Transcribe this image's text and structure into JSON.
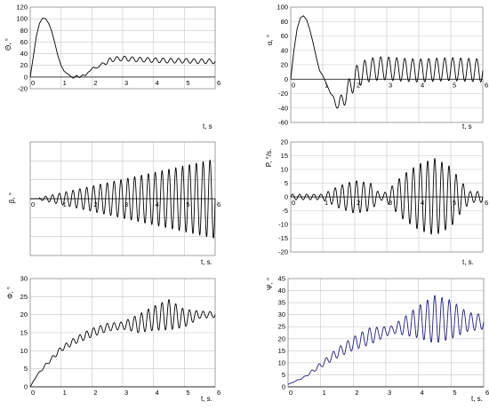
{
  "chart_data": [
    {
      "type": "line",
      "ylabel": "Θ, °",
      "xlabel": "t, s",
      "xlim": [
        0,
        6
      ],
      "ylim": [
        -20,
        120
      ],
      "xticks": [
        "0",
        "1",
        "2",
        "3",
        "4",
        "5",
        "6"
      ],
      "yticks": [
        "-20",
        "0",
        "20",
        "40",
        "60",
        "80",
        "100",
        "120"
      ],
      "grid": true,
      "color": "#000000",
      "series": [
        {
          "x": [
            0,
            0.1,
            0.2,
            0.3,
            0.4,
            0.5,
            0.6,
            0.7,
            0.8,
            0.9,
            1.0,
            1.1,
            1.2,
            1.3,
            1.4,
            1.5,
            1.6,
            1.7,
            1.8,
            1.9,
            2.0,
            2.1,
            2.2,
            2.3,
            2.4,
            2.5,
            2.6,
            2.8,
            3.0,
            3.5,
            4.0,
            4.5,
            5.0,
            5.5,
            6.0
          ],
          "y": [
            0,
            35,
            70,
            92,
            101,
            100,
            92,
            78,
            58,
            36,
            20,
            10,
            6,
            2,
            -2,
            3,
            -1,
            4,
            2,
            10,
            15,
            14,
            20,
            18,
            26,
            24,
            30,
            31,
            32,
            30,
            29,
            28,
            28,
            27,
            27
          ],
          "oscillation": {
            "from": 1.7,
            "to": 6,
            "amplitude": 4,
            "frequency": 4
          }
        }
      ]
    },
    {
      "type": "line",
      "ylabel": "α, °",
      "xlabel": "t, s",
      "xlim": [
        0,
        6
      ],
      "ylim": [
        -60,
        100
      ],
      "xticks": [
        "0",
        "1",
        "2",
        "3",
        "4",
        "5",
        "6"
      ],
      "yticks": [
        "-60",
        "-40",
        "-20",
        "0",
        "20",
        "40",
        "60",
        "80",
        "100"
      ],
      "grid": true,
      "color": "#000000",
      "series": [
        {
          "x": [
            0,
            0.1,
            0.2,
            0.3,
            0.4,
            0.5,
            0.6,
            0.7,
            0.8,
            0.9,
            1.0,
            1.1,
            1.2,
            1.3,
            1.4,
            1.5,
            1.6,
            1.7,
            1.8,
            1.9,
            2.0,
            2.1,
            2.2,
            2.4,
            2.6,
            2.8,
            3.0,
            3.5,
            4.0,
            4.5,
            5.0,
            5.5,
            6.0
          ],
          "y": [
            0,
            40,
            70,
            85,
            88,
            82,
            68,
            50,
            30,
            12,
            5,
            -5,
            -15,
            -25,
            -32,
            -36,
            -30,
            -22,
            -18,
            -5,
            0,
            5,
            8,
            12,
            14,
            15,
            15,
            13,
            12,
            13,
            14,
            13,
            12
          ],
          "oscillation": {
            "from": 1.2,
            "to": 6,
            "amplitude": 16,
            "frequency": 4
          }
        }
      ]
    },
    {
      "type": "line",
      "ylabel": "β, °",
      "xlabel": "t, s.",
      "xlim": [
        0,
        6
      ],
      "ylim": [
        -15,
        15
      ],
      "xticks": [
        "0",
        "1",
        "2",
        "3",
        "4",
        "5",
        "6"
      ],
      "yticks": [],
      "grid": true,
      "color": "#000000",
      "series": [
        {
          "x": [
            0,
            0.5,
            1.0,
            1.5,
            2.0,
            2.5,
            3.0,
            3.5,
            4.0,
            4.5,
            5.0,
            5.5,
            6.0
          ],
          "y": [
            0,
            0,
            0,
            0,
            0,
            0,
            0,
            0,
            0,
            0,
            0,
            0,
            0
          ],
          "oscillation": {
            "from": 0.3,
            "to": 6,
            "amplitude_start": 0.3,
            "amplitude_end": 10.5,
            "frequency": 4.5
          }
        }
      ]
    },
    {
      "type": "line",
      "ylabel": "P, °/s.",
      "xlabel": "t, s.",
      "xlim": [
        0,
        6
      ],
      "ylim": [
        -20,
        20
      ],
      "xticks": [
        "0",
        "1",
        "2",
        "3",
        "4",
        "5",
        "6"
      ],
      "yticks": [
        "-20",
        "-15",
        "-10",
        "-5",
        "0",
        "5",
        "10",
        "15",
        "20"
      ],
      "grid": true,
      "color": "#000000",
      "series": [
        {
          "x": [
            0,
            1.0,
            1.5,
            2.0,
            2.5,
            2.8,
            3.0,
            3.5,
            4.0,
            4.5,
            5.0,
            5.3,
            5.6,
            6.0
          ],
          "y": [
            1,
            1,
            4,
            6,
            5,
            1,
            2,
            8,
            12,
            14,
            11,
            6,
            2,
            2
          ],
          "oscillation": {
            "from": 0,
            "to": 6,
            "amplitude_from_y": true,
            "frequency": 4.5
          }
        }
      ]
    },
    {
      "type": "line",
      "ylabel": "Φ, °",
      "xlabel": "t, s.",
      "xlim": [
        0,
        6
      ],
      "ylim": [
        0,
        30
      ],
      "xticks": [
        "0",
        "1",
        "2",
        "3",
        "4",
        "5",
        "6"
      ],
      "yticks": [
        "0",
        "5",
        "10",
        "15",
        "20",
        "25",
        "30"
      ],
      "grid": true,
      "color": "#000000",
      "series": [
        {
          "x": [
            0,
            0.2,
            0.5,
            1.0,
            1.5,
            2.0,
            2.5,
            3.0,
            3.5,
            4.0,
            4.5,
            5.0,
            5.5,
            6.0
          ],
          "y": [
            0,
            3,
            6,
            10.5,
            13,
            15,
            16.5,
            17,
            17.5,
            19,
            20,
            19,
            20,
            20
          ],
          "oscillation": {
            "amp_x": [
              0,
              0.8,
              2.0,
              3.0,
              3.5,
              4.5,
              5.0,
              5.5,
              6.0
            ],
            "amp_y": [
              0,
              0.6,
              1.2,
              1.0,
              2.5,
              4.2,
              2.5,
              1.0,
              0.8
            ],
            "frequency": 4.5
          }
        }
      ]
    },
    {
      "type": "line",
      "ylabel": "Ψ, °",
      "xlabel": "t, s.",
      "xlim": [
        0,
        6
      ],
      "ylim": [
        0,
        45
      ],
      "xticks": [
        "0",
        "1",
        "2",
        "3",
        "4",
        "5",
        "6"
      ],
      "yticks": [
        "0",
        "5",
        "10",
        "15",
        "20",
        "25",
        "30",
        "35",
        "40",
        "45"
      ],
      "grid": true,
      "color": "#1f1f7a",
      "series": [
        {
          "x": [
            0,
            0.5,
            1.0,
            1.5,
            2.0,
            2.5,
            3.0,
            3.5,
            4.0,
            4.5,
            5.0,
            5.5,
            6.0
          ],
          "y": [
            1,
            4,
            9,
            14,
            18,
            21,
            23,
            25,
            27,
            28,
            28,
            27,
            27
          ],
          "oscillation": {
            "amp_x": [
              0,
              0.6,
              1.5,
              2.5,
              3.2,
              3.6,
              4.5,
              5.0,
              5.5,
              6.0
            ],
            "amp_y": [
              0,
              0.4,
              2,
              3.5,
              1.5,
              4,
              10,
              8,
              4,
              3
            ],
            "frequency": 4.5
          }
        }
      ]
    }
  ]
}
